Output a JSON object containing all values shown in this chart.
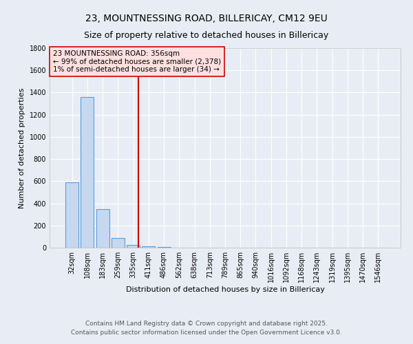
{
  "title_line1": "23, MOUNTNESSING ROAD, BILLERICAY, CM12 9EU",
  "title_line2": "Size of property relative to detached houses in Billericay",
  "xlabel": "Distribution of detached houses by size in Billericay",
  "ylabel": "Number of detached properties",
  "categories": [
    "32sqm",
    "108sqm",
    "183sqm",
    "259sqm",
    "335sqm",
    "411sqm",
    "486sqm",
    "562sqm",
    "638sqm",
    "713sqm",
    "789sqm",
    "865sqm",
    "940sqm",
    "1016sqm",
    "1092sqm",
    "1168sqm",
    "1243sqm",
    "1319sqm",
    "1395sqm",
    "1470sqm",
    "1546sqm"
  ],
  "values": [
    590,
    1360,
    350,
    90,
    27,
    15,
    5,
    0,
    0,
    0,
    0,
    0,
    0,
    0,
    0,
    0,
    0,
    0,
    0,
    0,
    0
  ],
  "bar_color": "#c5d8f0",
  "bar_edge_color": "#5b9bd5",
  "red_line_x": 4.35,
  "annotation_box_text": "23 MOUNTNESSING ROAD: 356sqm\n← 99% of detached houses are smaller (2,378)\n1% of semi-detached houses are larger (34) →",
  "annotation_box_color": "#ffe0e0",
  "annotation_box_edge_color": "#cc0000",
  "ylim": [
    0,
    1800
  ],
  "yticks": [
    0,
    200,
    400,
    600,
    800,
    1000,
    1200,
    1400,
    1600,
    1800
  ],
  "background_color": "#e8edf5",
  "grid_color": "#ffffff",
  "footer_line1": "Contains HM Land Registry data © Crown copyright and database right 2025.",
  "footer_line2": "Contains public sector information licensed under the Open Government Licence v3.0.",
  "title_fontsize": 10,
  "subtitle_fontsize": 9,
  "axis_label_fontsize": 8,
  "tick_fontsize": 7,
  "annotation_fontsize": 7.5,
  "footer_fontsize": 6.5
}
